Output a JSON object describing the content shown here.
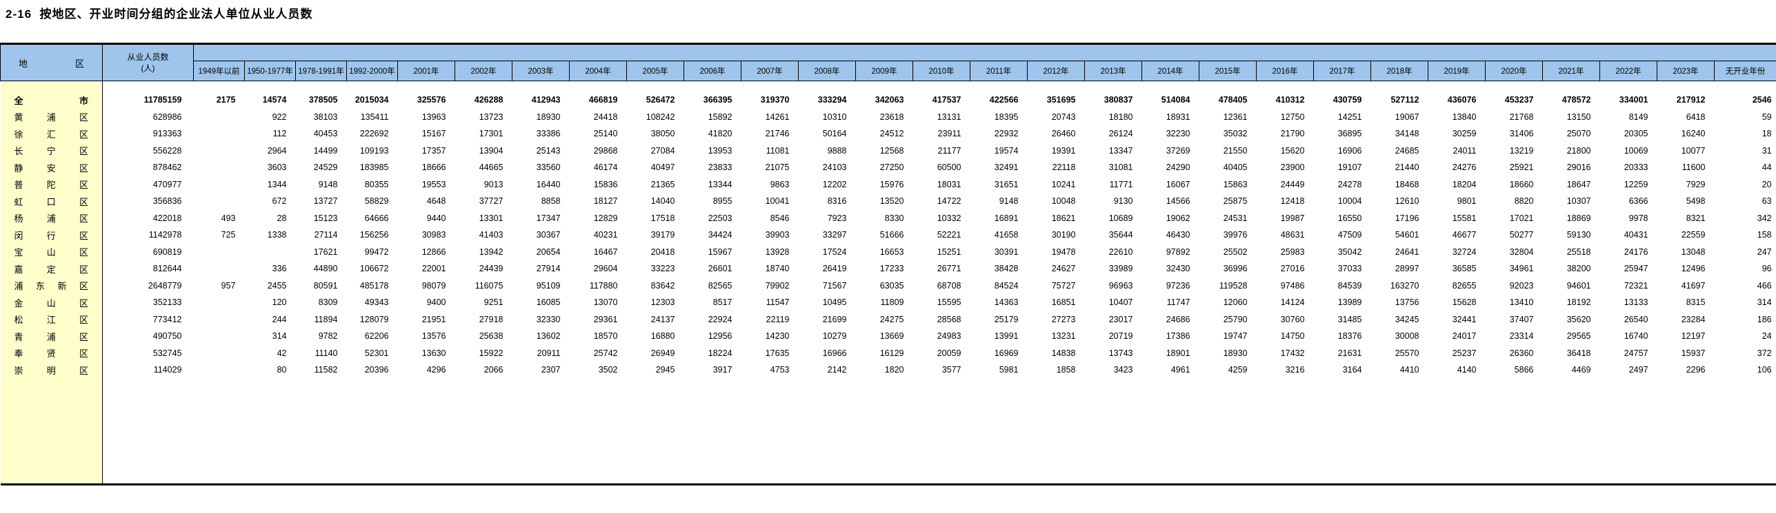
{
  "title": "2-16  按地区、开业时间分组的企业法人单位从业人员数",
  "colors": {
    "header_bg": "#9FC5EC",
    "region_col_bg": "#FFFFCC",
    "rule": "#000000"
  },
  "table": {
    "region_header": "地区",
    "total_header_line1": "从业人员数",
    "total_header_line2": "(人)",
    "columns": [
      "1949年以前",
      "1950-1977年",
      "1978-1991年",
      "1992-2000年",
      "2001年",
      "2002年",
      "2003年",
      "2004年",
      "2005年",
      "2006年",
      "2007年",
      "2008年",
      "2009年",
      "2010年",
      "2011年",
      "2012年",
      "2013年",
      "2014年",
      "2015年",
      "2016年",
      "2017年",
      "2018年",
      "2019年",
      "2020年",
      "2021年",
      "2022年",
      "2023年",
      "无开业年份"
    ],
    "rows": [
      {
        "region": "全市",
        "bold": true,
        "values": [
          "11785159",
          "2175",
          "14574",
          "378505",
          "2015034",
          "325576",
          "426288",
          "412943",
          "466819",
          "526472",
          "366395",
          "319370",
          "333294",
          "342063",
          "417537",
          "422566",
          "351695",
          "380837",
          "514084",
          "478405",
          "410312",
          "430759",
          "527112",
          "436076",
          "453237",
          "478572",
          "334001",
          "217912",
          "2546"
        ]
      },
      {
        "region": "黄浦区",
        "bold": false,
        "values": [
          "628986",
          "",
          "922",
          "38103",
          "135411",
          "13963",
          "13723",
          "18930",
          "24418",
          "108242",
          "15892",
          "14261",
          "10310",
          "23618",
          "13131",
          "18395",
          "20743",
          "18180",
          "18931",
          "12361",
          "12750",
          "14251",
          "19067",
          "13840",
          "21768",
          "13150",
          "8149",
          "6418",
          "59"
        ]
      },
      {
        "region": "徐汇区",
        "bold": false,
        "values": [
          "913363",
          "",
          "112",
          "40453",
          "222692",
          "15167",
          "17301",
          "33386",
          "25140",
          "38050",
          "41820",
          "21746",
          "50164",
          "24512",
          "23911",
          "22932",
          "26460",
          "26124",
          "32230",
          "35032",
          "21790",
          "36895",
          "34148",
          "30259",
          "31406",
          "25070",
          "20305",
          "16240",
          "18"
        ]
      },
      {
        "region": "长宁区",
        "bold": false,
        "values": [
          "556228",
          "",
          "2964",
          "14499",
          "109193",
          "17357",
          "13904",
          "25143",
          "29868",
          "27084",
          "13953",
          "11081",
          "9888",
          "12568",
          "21177",
          "19574",
          "19391",
          "13347",
          "37269",
          "21550",
          "15620",
          "16906",
          "24685",
          "24011",
          "13219",
          "21800",
          "10069",
          "10077",
          "31"
        ]
      },
      {
        "region": "静安区",
        "bold": false,
        "values": [
          "878462",
          "",
          "3603",
          "24529",
          "183985",
          "18666",
          "44665",
          "33560",
          "46174",
          "40497",
          "23833",
          "21075",
          "24103",
          "27250",
          "60500",
          "32491",
          "22118",
          "31081",
          "24290",
          "40405",
          "23900",
          "19107",
          "21440",
          "24276",
          "25921",
          "29016",
          "20333",
          "11600",
          "44"
        ]
      },
      {
        "region": "普陀区",
        "bold": false,
        "values": [
          "470977",
          "",
          "1344",
          "9148",
          "80355",
          "19553",
          "9013",
          "16440",
          "15836",
          "21365",
          "13344",
          "9863",
          "12202",
          "15976",
          "18031",
          "31651",
          "10241",
          "11771",
          "16067",
          "15863",
          "24449",
          "24278",
          "18468",
          "18204",
          "18660",
          "18647",
          "12259",
          "7929",
          "20"
        ]
      },
      {
        "region": "虹口区",
        "bold": false,
        "values": [
          "356836",
          "",
          "672",
          "13727",
          "58829",
          "4648",
          "37727",
          "8858",
          "18127",
          "14040",
          "8955",
          "10041",
          "8316",
          "13520",
          "14722",
          "9148",
          "10048",
          "9130",
          "14566",
          "25875",
          "12418",
          "10004",
          "12610",
          "9801",
          "8820",
          "10307",
          "6366",
          "5498",
          "63"
        ]
      },
      {
        "region": "杨浦区",
        "bold": false,
        "values": [
          "422018",
          "493",
          "28",
          "15123",
          "64666",
          "9440",
          "13301",
          "17347",
          "12829",
          "17518",
          "22503",
          "8546",
          "7923",
          "8330",
          "10332",
          "16891",
          "18621",
          "10689",
          "19062",
          "24531",
          "19987",
          "16550",
          "17196",
          "15581",
          "17021",
          "18869",
          "9978",
          "8321",
          "342"
        ]
      },
      {
        "region": "闵行区",
        "bold": false,
        "values": [
          "1142978",
          "725",
          "1338",
          "27114",
          "156256",
          "30983",
          "41403",
          "30367",
          "40231",
          "39179",
          "34424",
          "39903",
          "33297",
          "51666",
          "52221",
          "41658",
          "30190",
          "35644",
          "46430",
          "39976",
          "48631",
          "47509",
          "54601",
          "46677",
          "50277",
          "59130",
          "40431",
          "22559",
          "158"
        ]
      },
      {
        "region": "宝山区",
        "bold": false,
        "values": [
          "690819",
          "",
          "",
          "17621",
          "99472",
          "12866",
          "13942",
          "20654",
          "16467",
          "20418",
          "15967",
          "13928",
          "17524",
          "16653",
          "15251",
          "30391",
          "19478",
          "22610",
          "97892",
          "25502",
          "25983",
          "35042",
          "24641",
          "32724",
          "32804",
          "25518",
          "24176",
          "13048",
          "247"
        ]
      },
      {
        "region": "嘉定区",
        "bold": false,
        "values": [
          "812644",
          "",
          "336",
          "44890",
          "106672",
          "22001",
          "24439",
          "27914",
          "29604",
          "33223",
          "26601",
          "18740",
          "26419",
          "17233",
          "26771",
          "38428",
          "24627",
          "33989",
          "32430",
          "36996",
          "27016",
          "37033",
          "28997",
          "36585",
          "34961",
          "38200",
          "25947",
          "12496",
          "96"
        ]
      },
      {
        "region": "浦东新区",
        "bold": false,
        "values": [
          "2648779",
          "957",
          "2455",
          "80591",
          "485178",
          "98079",
          "116075",
          "95109",
          "117880",
          "83642",
          "82565",
          "79902",
          "71567",
          "63035",
          "68708",
          "84524",
          "75727",
          "96963",
          "97236",
          "119528",
          "97486",
          "84539",
          "163270",
          "82655",
          "92023",
          "94601",
          "72321",
          "41697",
          "466"
        ]
      },
      {
        "region": "金山区",
        "bold": false,
        "values": [
          "352133",
          "",
          "120",
          "8309",
          "49343",
          "9400",
          "9251",
          "16085",
          "13070",
          "12303",
          "8517",
          "11547",
          "10495",
          "11809",
          "15595",
          "14363",
          "16851",
          "10407",
          "11747",
          "12060",
          "14124",
          "13989",
          "13756",
          "15628",
          "13410",
          "18192",
          "13133",
          "8315",
          "314"
        ]
      },
      {
        "region": "松江区",
        "bold": false,
        "values": [
          "773412",
          "",
          "244",
          "11894",
          "128079",
          "21951",
          "27918",
          "32330",
          "29361",
          "24137",
          "22924",
          "22119",
          "21699",
          "24275",
          "28568",
          "25179",
          "27273",
          "23017",
          "24686",
          "25790",
          "30760",
          "31485",
          "34245",
          "32441",
          "37407",
          "35620",
          "26540",
          "23284",
          "186"
        ]
      },
      {
        "region": "青浦区",
        "bold": false,
        "values": [
          "490750",
          "",
          "314",
          "9782",
          "62206",
          "13576",
          "25638",
          "13602",
          "18570",
          "16880",
          "12956",
          "14230",
          "10279",
          "13669",
          "24983",
          "13991",
          "13231",
          "20719",
          "17386",
          "19747",
          "14750",
          "18376",
          "30008",
          "24017",
          "23314",
          "29565",
          "16740",
          "12197",
          "24"
        ]
      },
      {
        "region": "奉贤区",
        "bold": false,
        "values": [
          "532745",
          "",
          "42",
          "11140",
          "52301",
          "13630",
          "15922",
          "20911",
          "25742",
          "26949",
          "18224",
          "17635",
          "16966",
          "16129",
          "20059",
          "16969",
          "14838",
          "13743",
          "18901",
          "18930",
          "17432",
          "21631",
          "25570",
          "25237",
          "26360",
          "36418",
          "24757",
          "15937",
          "372"
        ]
      },
      {
        "region": "崇明区",
        "bold": false,
        "values": [
          "114029",
          "",
          "80",
          "11582",
          "20396",
          "4296",
          "2066",
          "2307",
          "3502",
          "2945",
          "3917",
          "4753",
          "2142",
          "1820",
          "3577",
          "5981",
          "1858",
          "3423",
          "4961",
          "4259",
          "3216",
          "3164",
          "4410",
          "4140",
          "5866",
          "4469",
          "2497",
          "2296",
          "106"
        ]
      }
    ]
  }
}
